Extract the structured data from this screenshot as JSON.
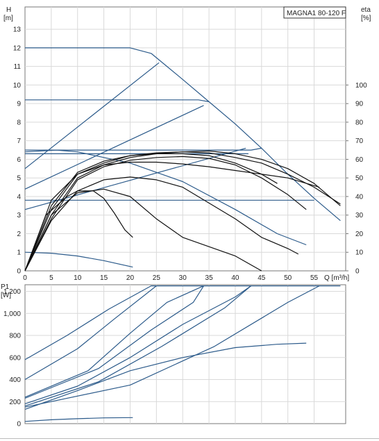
{
  "colors": {
    "pump_curve": "#2b5a8a",
    "performance": "#111111",
    "grid": "#d9d9d9",
    "axis": "#777777"
  },
  "chart_data": [
    {
      "type": "line",
      "title": "MAGNA1 80-120 F",
      "ylabel": "H",
      "ylabel_unit": "[m]",
      "y2label": "eta",
      "y2label_unit": "[%]",
      "xlabel": "Q [m³/h]",
      "xlim": [
        0,
        61
      ],
      "ylim": [
        0,
        14.2
      ],
      "y2lim": [
        0,
        142
      ],
      "xticks": [
        0,
        5,
        10,
        15,
        20,
        25,
        30,
        35,
        40,
        45,
        50,
        55
      ],
      "yticks": [
        0,
        1,
        2,
        3,
        4,
        5,
        6,
        7,
        8,
        9,
        10,
        11,
        12,
        13
      ],
      "y2ticks": [
        0,
        10,
        20,
        30,
        40,
        50,
        60,
        70,
        80,
        90,
        100
      ],
      "grid": true,
      "series": [
        {
          "kind": "head",
          "points": [
            [
              0,
              12
            ],
            [
              20,
              12
            ],
            [
              24,
              11.7
            ],
            [
              27,
              11.0
            ],
            [
              30,
              10.3
            ],
            [
              35,
              9.1
            ],
            [
              40,
              7.9
            ],
            [
              45,
              6.6
            ],
            [
              50,
              5.2
            ],
            [
              55,
              3.9
            ],
            [
              60,
              2.7
            ]
          ]
        },
        {
          "kind": "head",
          "points": [
            [
              0,
              9.2
            ],
            [
              33,
              9.2
            ],
            [
              35,
              9.1
            ]
          ]
        },
        {
          "kind": "head",
          "points": [
            [
              0,
              6.5
            ],
            [
              43,
              6.5
            ],
            [
              45,
              6.6
            ]
          ]
        },
        {
          "kind": "head",
          "points": [
            [
              0,
              6.3
            ],
            [
              42.5,
              6.3
            ]
          ]
        },
        {
          "kind": "head",
          "points": [
            [
              0,
              3.8
            ],
            [
              55,
              3.8
            ]
          ]
        },
        {
          "kind": "head",
          "points": [
            [
              0,
              5.5
            ],
            [
              25.5,
              11.2
            ]
          ]
        },
        {
          "kind": "head",
          "points": [
            [
              0,
              4.4
            ],
            [
              34,
              8.9
            ]
          ]
        },
        {
          "kind": "head",
          "points": [
            [
              0,
              3.3
            ],
            [
              42,
              6.6
            ]
          ]
        },
        {
          "kind": "head",
          "points": [
            [
              0,
              6.4
            ],
            [
              6,
              6.5
            ],
            [
              10,
              6.4
            ],
            [
              20,
              5.8
            ],
            [
              30,
              4.8
            ],
            [
              40,
              3.3
            ],
            [
              48,
              2.0
            ],
            [
              53.5,
              1.4
            ]
          ]
        },
        {
          "kind": "head",
          "points": [
            [
              0,
              1.0
            ],
            [
              5,
              0.95
            ],
            [
              10,
              0.8
            ],
            [
              15,
              0.55
            ],
            [
              20.5,
              0.2
            ]
          ]
        },
        {
          "kind": "efficiency",
          "points": [
            [
              0,
              0
            ],
            [
              5,
              27
            ],
            [
              10,
              43
            ],
            [
              15,
              49
            ],
            [
              20,
              50.5
            ],
            [
              25,
              49
            ],
            [
              30,
              45
            ],
            [
              40,
              28
            ],
            [
              45,
              18
            ],
            [
              50,
              12
            ],
            [
              52,
              9
            ]
          ]
        },
        {
          "kind": "efficiency",
          "points": [
            [
              0,
              0
            ],
            [
              5,
              30
            ],
            [
              10,
              42
            ],
            [
              15,
              44
            ],
            [
              20,
              40
            ],
            [
              25,
              28
            ],
            [
              30,
              18
            ],
            [
              40,
              8
            ],
            [
              45,
              0
            ]
          ]
        },
        {
          "kind": "efficiency",
          "points": [
            [
              0,
              0
            ],
            [
              5,
              30
            ],
            [
              10,
              50
            ],
            [
              15,
              57
            ],
            [
              20,
              61
            ],
            [
              25,
              63
            ],
            [
              30,
              64
            ],
            [
              35,
              64.5
            ],
            [
              40,
              63
            ],
            [
              45,
              60
            ],
            [
              50,
              55
            ],
            [
              55,
              47
            ],
            [
              60,
              35
            ]
          ]
        },
        {
          "kind": "efficiency",
          "points": [
            [
              0,
              0
            ],
            [
              5,
              33
            ],
            [
              10,
              52
            ],
            [
              15,
              58
            ],
            [
              20,
              62
            ],
            [
              25,
              63.5
            ],
            [
              30,
              64
            ],
            [
              35,
              63.5
            ],
            [
              40,
              61
            ],
            [
              45,
              58
            ],
            [
              50,
              52
            ],
            [
              55,
              45
            ],
            [
              60,
              36
            ]
          ]
        },
        {
          "kind": "efficiency",
          "points": [
            [
              0,
              0
            ],
            [
              5,
              35
            ],
            [
              10,
              53
            ],
            [
              15,
              59
            ],
            [
              20,
              62
            ],
            [
              25,
              63
            ],
            [
              30,
              63
            ],
            [
              35,
              62
            ],
            [
              40,
              58
            ],
            [
              45,
              52
            ],
            [
              48,
              47
            ]
          ]
        },
        {
          "kind": "efficiency",
          "points": [
            [
              0,
              0
            ],
            [
              5,
              28
            ],
            [
              10,
              49
            ],
            [
              15,
              56
            ],
            [
              20,
              59.5
            ],
            [
              25,
              61
            ],
            [
              30,
              61.5
            ],
            [
              35,
              60.5
            ],
            [
              40,
              57
            ],
            [
              45,
              50
            ],
            [
              50,
              41
            ],
            [
              53.5,
              33
            ]
          ]
        },
        {
          "kind": "efficiency",
          "points": [
            [
              0,
              0
            ],
            [
              5,
              38
            ],
            [
              10,
              52
            ],
            [
              15,
              57
            ],
            [
              20,
              58.5
            ],
            [
              25,
              58.5
            ],
            [
              30,
              57.5
            ],
            [
              35,
              56
            ],
            [
              40,
              54
            ],
            [
              45,
              52
            ],
            [
              50,
              50
            ],
            [
              56,
              45
            ]
          ]
        },
        {
          "kind": "efficiency",
          "points": [
            [
              0,
              0
            ],
            [
              4,
              30
            ],
            [
              8,
              40
            ],
            [
              10,
              43
            ],
            [
              13,
              43
            ],
            [
              15,
              39
            ],
            [
              17,
              31
            ],
            [
              19,
              22
            ],
            [
              20.5,
              18
            ]
          ]
        }
      ]
    },
    {
      "type": "line",
      "ylabel": "P1",
      "ylabel_unit": "[W]",
      "xlim": [
        0,
        61
      ],
      "ylim": [
        0,
        1260
      ],
      "yticks": [
        0,
        200,
        400,
        600,
        800,
        1000,
        1200
      ],
      "ytick_labels": [
        "0",
        "200",
        "400",
        "600",
        "800",
        "1,000",
        "1,200"
      ],
      "grid": true,
      "series": [
        {
          "points": [
            [
              0,
              580
            ],
            [
              8,
              800
            ],
            [
              16,
              1040
            ],
            [
              24,
              1250
            ],
            [
              60,
              1250
            ]
          ]
        },
        {
          "points": [
            [
              0,
              400
            ],
            [
              10,
              680
            ],
            [
              17,
              950
            ],
            [
              25,
              1250
            ]
          ]
        },
        {
          "points": [
            [
              0,
              240
            ],
            [
              12,
              480
            ],
            [
              20,
              820
            ],
            [
              27,
              1100
            ],
            [
              34,
              1250
            ]
          ]
        },
        {
          "points": [
            [
              0,
              230
            ],
            [
              14,
              500
            ],
            [
              24,
              850
            ],
            [
              32,
              1100
            ],
            [
              34,
              1250
            ]
          ]
        },
        {
          "points": [
            [
              0,
              160
            ],
            [
              14,
              380
            ],
            [
              26,
              700
            ],
            [
              38,
              1050
            ],
            [
              43,
              1250
            ]
          ]
        },
        {
          "points": [
            [
              0,
              180
            ],
            [
              10,
              340
            ],
            [
              20,
              600
            ],
            [
              30,
              900
            ],
            [
              40,
              1150
            ],
            [
              43,
              1250
            ]
          ]
        },
        {
          "points": [
            [
              0,
              150
            ],
            [
              20,
              350
            ],
            [
              36,
              700
            ],
            [
              50,
              1100
            ],
            [
              56,
              1250
            ]
          ]
        },
        {
          "points": [
            [
              0,
              130
            ],
            [
              10,
              300
            ],
            [
              20,
              480
            ],
            [
              30,
              600
            ],
            [
              40,
              690
            ],
            [
              48,
              720
            ],
            [
              53.5,
              730
            ]
          ]
        },
        {
          "points": [
            [
              0,
              20
            ],
            [
              5,
              35
            ],
            [
              10,
              45
            ],
            [
              15,
              52
            ],
            [
              20.5,
              55
            ]
          ]
        }
      ]
    }
  ]
}
